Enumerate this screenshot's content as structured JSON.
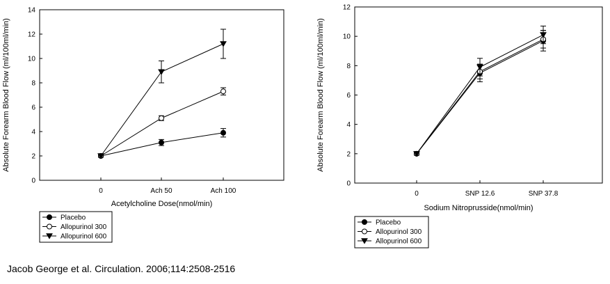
{
  "chart_data": [
    {
      "type": "line",
      "xlabel": "Acetylcholine Dose(nmol/min)",
      "ylabel": "Absolute Forearm Blood Flow (ml/100ml/min)",
      "categories": [
        "0",
        "Ach 50",
        "Ach 100"
      ],
      "ylim": [
        0,
        14
      ],
      "yticks": [
        0,
        2,
        4,
        6,
        8,
        10,
        12,
        14
      ],
      "ytick_labels": [
        "0",
        "2",
        "4",
        "6",
        "8",
        "10",
        "12",
        "14"
      ],
      "grid": false,
      "legend_position": "below",
      "series": [
        {
          "name": "Placebo",
          "marker": "filled-circle",
          "values": [
            2.0,
            3.1,
            3.9
          ],
          "errors": [
            0.1,
            0.25,
            0.35
          ]
        },
        {
          "name": "Allopurinol 300",
          "marker": "open-circle",
          "values": [
            2.0,
            5.1,
            7.3
          ],
          "errors": [
            0.1,
            0.2,
            0.3
          ]
        },
        {
          "name": "Allopurinol 600",
          "marker": "filled-triangle-down",
          "values": [
            2.0,
            8.9,
            11.2
          ],
          "errors": [
            0.1,
            0.9,
            1.2
          ]
        }
      ]
    },
    {
      "type": "line",
      "xlabel": "Sodium Nitroprusside(nmol/min)",
      "ylabel": "Absolute Forearm Blood Flow (ml/100ml/min)",
      "categories": [
        "0",
        "SNP 12.6",
        "SNP 37.8"
      ],
      "ylim": [
        0,
        12
      ],
      "yticks": [
        0,
        2,
        4,
        6,
        8,
        10,
        12
      ],
      "ytick_labels": [
        "0",
        "2",
        "4",
        "6",
        "8",
        "10",
        "12"
      ],
      "grid": false,
      "legend_position": "below",
      "series": [
        {
          "name": "Placebo",
          "marker": "filled-circle",
          "values": [
            2.0,
            7.5,
            9.7
          ],
          "errors": [
            0.1,
            0.6,
            0.7
          ]
        },
        {
          "name": "Allopurinol 300",
          "marker": "open-circle",
          "values": [
            2.0,
            7.6,
            9.8
          ],
          "errors": [
            0.1,
            0.5,
            0.6
          ]
        },
        {
          "name": "Allopurinol 600",
          "marker": "filled-triangle-down",
          "values": [
            2.0,
            7.9,
            10.1
          ],
          "errors": [
            0.1,
            0.6,
            0.6
          ]
        }
      ]
    }
  ],
  "citation": "Jacob George et al. Circulation. 2006;114:2508-2516"
}
